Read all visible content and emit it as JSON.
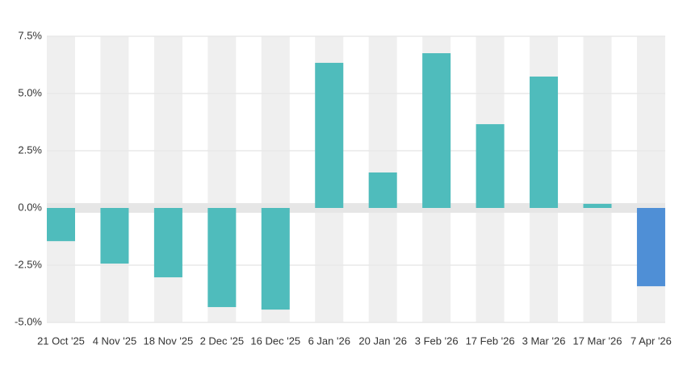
{
  "chart_data": {
    "type": "bar",
    "categories": [
      "21 Oct '25",
      "4 Nov '25",
      "18 Nov '25",
      "2 Dec '25",
      "16 Dec '25",
      "6 Jan '26",
      "20 Jan '26",
      "3 Feb '26",
      "17 Feb '26",
      "3 Mar '26",
      "17 Mar '26",
      "7 Apr '26"
    ],
    "values": [
      -1.45,
      -2.43,
      -3.03,
      -4.33,
      -4.44,
      6.34,
      1.55,
      6.76,
      3.66,
      5.74,
      0.18,
      -3.42
    ],
    "colors": [
      "#4fbcbc",
      "#4fbcbc",
      "#4fbcbc",
      "#4fbcbc",
      "#4fbcbc",
      "#4fbcbc",
      "#4fbcbc",
      "#4fbcbc",
      "#4fbcbc",
      "#4fbcbc",
      "#4fbcbc",
      "#4f8fd6"
    ],
    "ylim": [
      -5,
      7.5
    ],
    "yticks": [
      {
        "value": -5,
        "label": "-5.0%"
      },
      {
        "value": -2.5,
        "label": "-2.5%"
      },
      {
        "value": 0,
        "label": "0.0%"
      },
      {
        "value": 2.5,
        "label": "2.5%"
      },
      {
        "value": 5,
        "label": "5.0%"
      },
      {
        "value": 7.5,
        "label": "7.5%"
      }
    ],
    "grid": true
  }
}
